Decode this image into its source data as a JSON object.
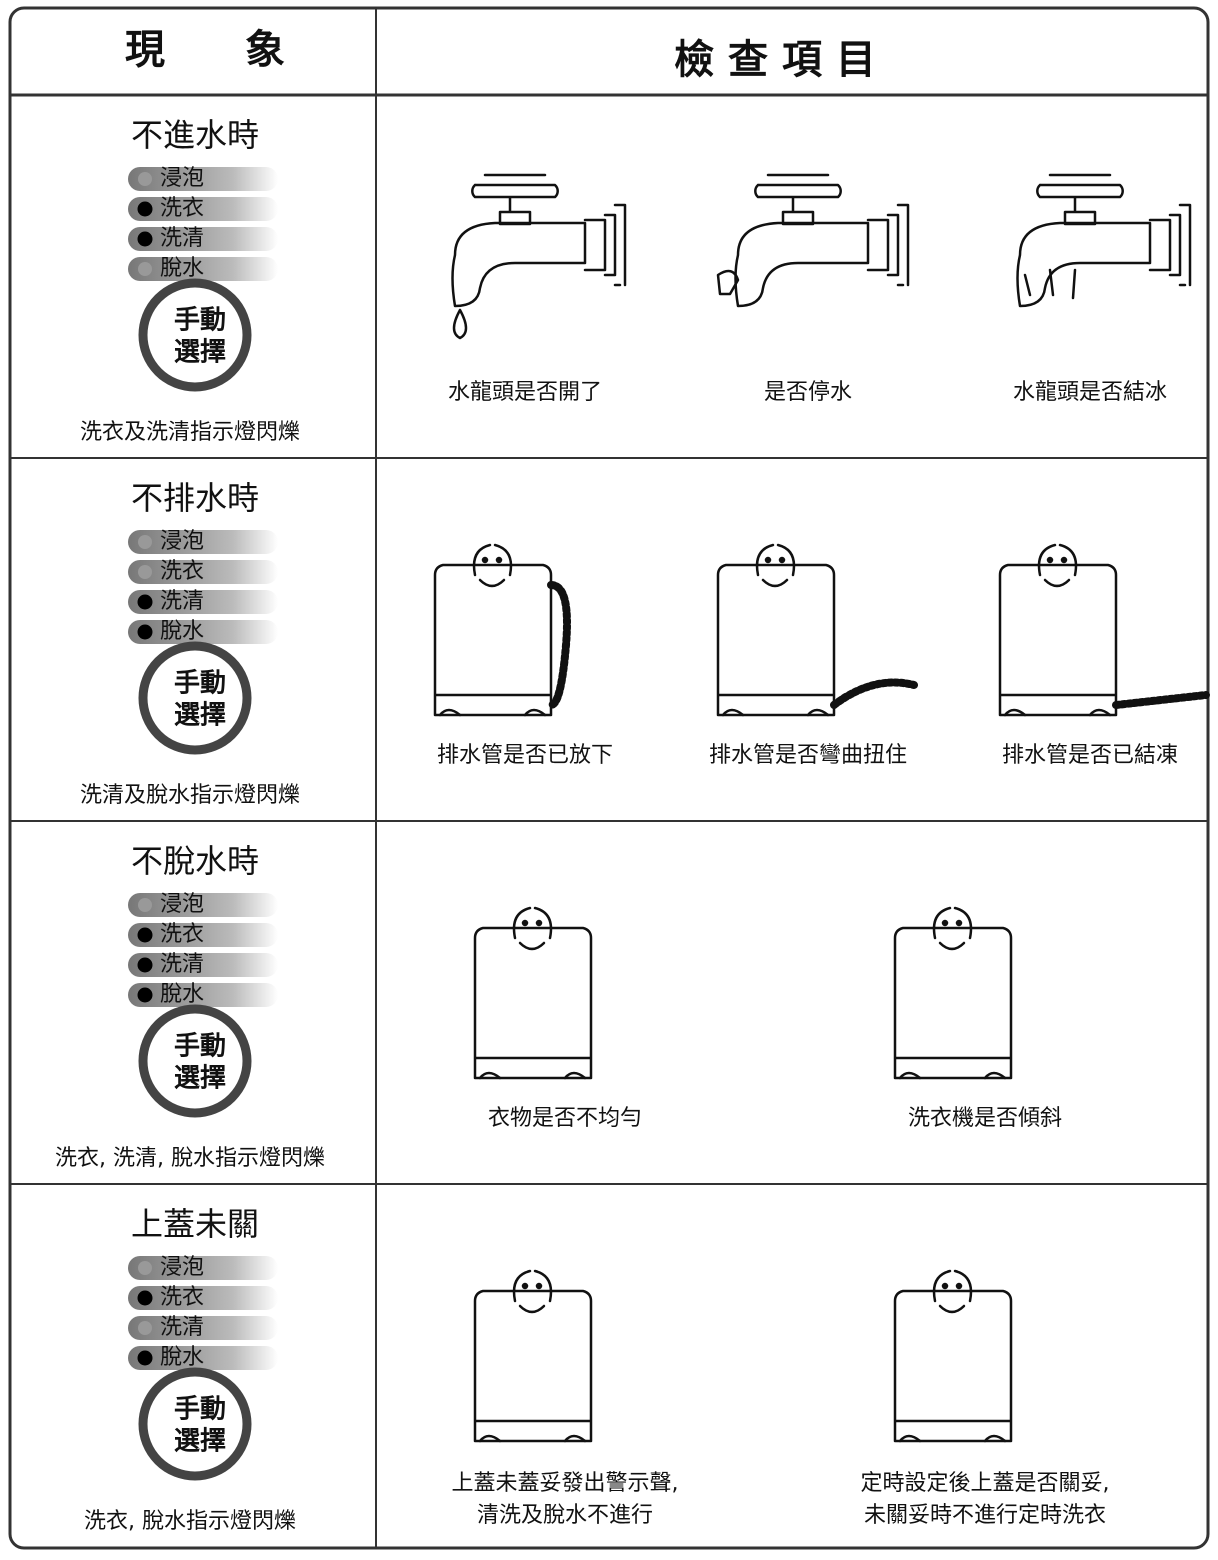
{
  "header": {
    "symptom": "現　　象",
    "checks": "檢 查 項 目"
  },
  "rows": [
    {
      "title": "不進水時",
      "indicators": [
        {
          "label": "浸泡",
          "lit": false
        },
        {
          "label": "洗衣",
          "lit": true
        },
        {
          "label": "洗清",
          "lit": true
        },
        {
          "label": "脫水",
          "lit": false
        }
      ],
      "button": [
        "手動",
        "選擇"
      ],
      "caption": "洗衣及洗清指示燈閃爍",
      "checks": [
        {
          "lines": [
            "水龍頭是否開了"
          ]
        },
        {
          "lines": [
            "是否停水"
          ]
        },
        {
          "lines": [
            "水龍頭是否結冰"
          ]
        }
      ]
    },
    {
      "title": "不排水時",
      "indicators": [
        {
          "label": "浸泡",
          "lit": false
        },
        {
          "label": "洗衣",
          "lit": false
        },
        {
          "label": "洗清",
          "lit": true
        },
        {
          "label": "脫水",
          "lit": true
        }
      ],
      "button": [
        "手動",
        "選擇"
      ],
      "caption": "洗清及脫水指示燈閃爍",
      "checks": [
        {
          "lines": [
            "排水管是否已放下"
          ]
        },
        {
          "lines": [
            "排水管是否彎曲扭住"
          ]
        },
        {
          "lines": [
            "排水管是否已結凍"
          ]
        }
      ]
    },
    {
      "title": "不脫水時",
      "indicators": [
        {
          "label": "浸泡",
          "lit": false
        },
        {
          "label": "洗衣",
          "lit": true
        },
        {
          "label": "洗清",
          "lit": true
        },
        {
          "label": "脫水",
          "lit": true
        }
      ],
      "button": [
        "手動",
        "選擇"
      ],
      "caption": "洗衣, 洗清, 脫水指示燈閃爍",
      "checks": [
        {
          "lines": [
            "衣物是否不均勻"
          ]
        },
        {
          "lines": [
            "洗衣機是否傾斜"
          ]
        }
      ]
    },
    {
      "title": "上蓋未關",
      "indicators": [
        {
          "label": "浸泡",
          "lit": false
        },
        {
          "label": "洗衣",
          "lit": true
        },
        {
          "label": "洗清",
          "lit": false
        },
        {
          "label": "脫水",
          "lit": true
        }
      ],
      "button": [
        "手動",
        "選擇"
      ],
      "caption": "洗衣, 脫水指示燈閃爍",
      "checks": [
        {
          "lines": [
            "上蓋未蓋妥發出警示聲,",
            "清洗及脫水不進行"
          ]
        },
        {
          "lines": [
            "定時設定後上蓋是否關妥,",
            "未關妥時不進行定時洗衣"
          ]
        }
      ]
    }
  ]
}
